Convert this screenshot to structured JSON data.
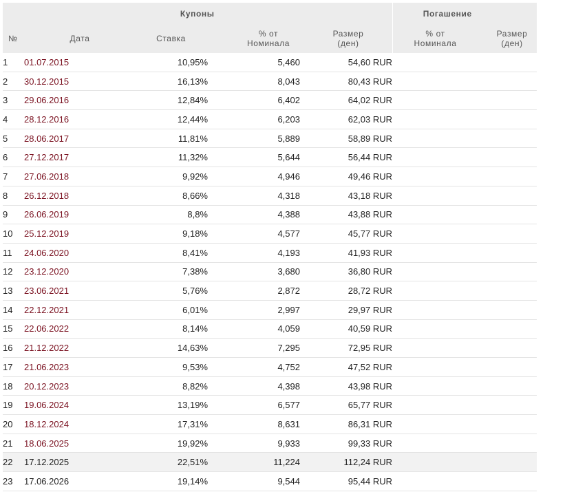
{
  "groups": {
    "coupons": "Купоны",
    "redemption": "Погашение"
  },
  "headers": {
    "num": "№",
    "date": "Дата",
    "rate": "Ставка",
    "pct_line1": "% от",
    "pct_line2": "Номинала",
    "amount_line1": "Размер",
    "amount_line2": "(ден)",
    "red_pct_line1": "% от",
    "red_pct_line2": "Номинала",
    "red_amount_line1": "Размер",
    "red_amount_line2": "(ден)"
  },
  "colors": {
    "past_date": "#7a1120",
    "header_bg": "#ececec",
    "highlight_row": "#f2f2f2"
  },
  "rows": [
    {
      "num": "1",
      "date": "01.07.2015",
      "rate": "10,95%",
      "pct": "5,460",
      "amount": "54,60 RUR",
      "past": true
    },
    {
      "num": "2",
      "date": "30.12.2015",
      "rate": "16,13%",
      "pct": "8,043",
      "amount": "80,43 RUR",
      "past": true
    },
    {
      "num": "3",
      "date": "29.06.2016",
      "rate": "12,84%",
      "pct": "6,402",
      "amount": "64,02 RUR",
      "past": true
    },
    {
      "num": "4",
      "date": "28.12.2016",
      "rate": "12,44%",
      "pct": "6,203",
      "amount": "62,03 RUR",
      "past": true
    },
    {
      "num": "5",
      "date": "28.06.2017",
      "rate": "11,81%",
      "pct": "5,889",
      "amount": "58,89 RUR",
      "past": true
    },
    {
      "num": "6",
      "date": "27.12.2017",
      "rate": "11,32%",
      "pct": "5,644",
      "amount": "56,44 RUR",
      "past": true
    },
    {
      "num": "7",
      "date": "27.06.2018",
      "rate": "9,92%",
      "pct": "4,946",
      "amount": "49,46 RUR",
      "past": true
    },
    {
      "num": "8",
      "date": "26.12.2018",
      "rate": "8,66%",
      "pct": "4,318",
      "amount": "43,18 RUR",
      "past": true
    },
    {
      "num": "9",
      "date": "26.06.2019",
      "rate": "8,8%",
      "pct": "4,388",
      "amount": "43,88 RUR",
      "past": true
    },
    {
      "num": "10",
      "date": "25.12.2019",
      "rate": "9,18%",
      "pct": "4,577",
      "amount": "45,77 RUR",
      "past": true
    },
    {
      "num": "11",
      "date": "24.06.2020",
      "rate": "8,41%",
      "pct": "4,193",
      "amount": "41,93 RUR",
      "past": true
    },
    {
      "num": "12",
      "date": "23.12.2020",
      "rate": "7,38%",
      "pct": "3,680",
      "amount": "36,80 RUR",
      "past": true
    },
    {
      "num": "13",
      "date": "23.06.2021",
      "rate": "5,76%",
      "pct": "2,872",
      "amount": "28,72 RUR",
      "past": true
    },
    {
      "num": "14",
      "date": "22.12.2021",
      "rate": "6,01%",
      "pct": "2,997",
      "amount": "29,97 RUR",
      "past": true
    },
    {
      "num": "15",
      "date": "22.06.2022",
      "rate": "8,14%",
      "pct": "4,059",
      "amount": "40,59 RUR",
      "past": true
    },
    {
      "num": "16",
      "date": "21.12.2022",
      "rate": "14,63%",
      "pct": "7,295",
      "amount": "72,95 RUR",
      "past": true
    },
    {
      "num": "17",
      "date": "21.06.2023",
      "rate": "9,53%",
      "pct": "4,752",
      "amount": "47,52 RUR",
      "past": true
    },
    {
      "num": "18",
      "date": "20.12.2023",
      "rate": "8,82%",
      "pct": "4,398",
      "amount": "43,98 RUR",
      "past": true
    },
    {
      "num": "19",
      "date": "19.06.2024",
      "rate": "13,19%",
      "pct": "6,577",
      "amount": "65,77 RUR",
      "past": true
    },
    {
      "num": "20",
      "date": "18.12.2024",
      "rate": "17,31%",
      "pct": "8,631",
      "amount": "86,31 RUR",
      "past": true
    },
    {
      "num": "21",
      "date": "18.06.2025",
      "rate": "19,92%",
      "pct": "9,933",
      "amount": "99,33 RUR",
      "past": true
    },
    {
      "num": "22",
      "date": "17.12.2025",
      "rate": "22,51%",
      "pct": "11,224",
      "amount": "112,24 RUR",
      "past": false,
      "highlight": true
    },
    {
      "num": "23",
      "date": "17.06.2026",
      "rate": "19,14%",
      "pct": "9,544",
      "amount": "95,44 RUR",
      "past": false
    }
  ]
}
